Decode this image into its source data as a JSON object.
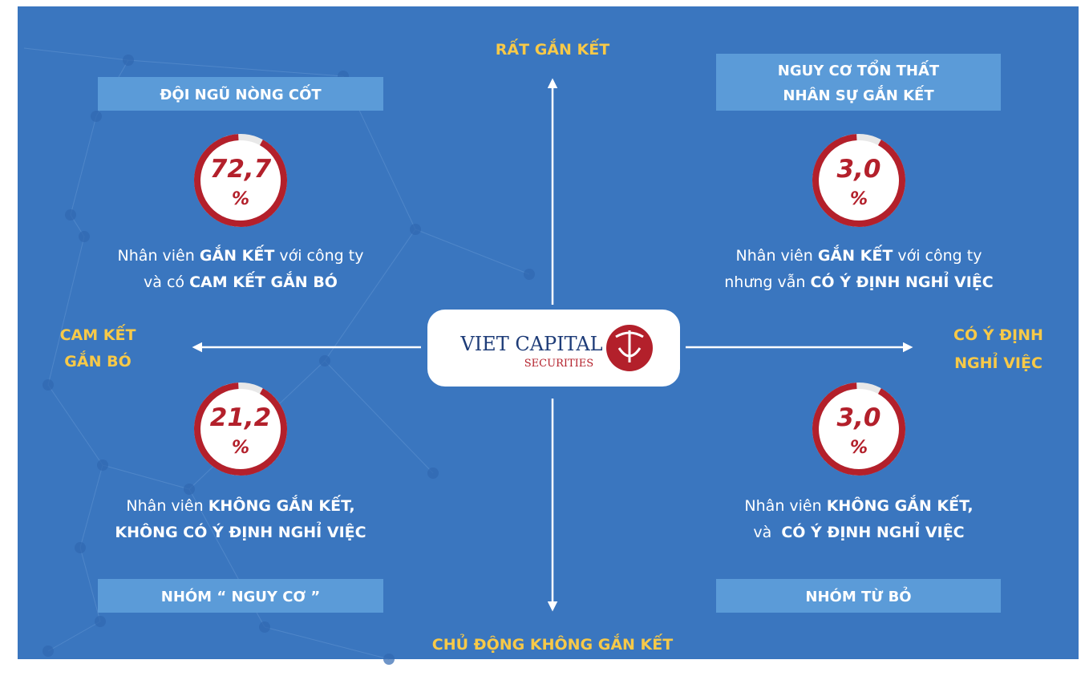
{
  "top_axis": "RẤT GẮN KẾT",
  "bottom_axis": "CHỦ ĐỘNG KHÔNG GẮN KẾT",
  "left_axis": [
    "CAM KẾT",
    "GẮN BÓ"
  ],
  "right_axis": [
    "CÓ Ý ĐỊNH",
    "NGHỈ VIỆC"
  ],
  "logo": {
    "name": "VIET CAPITAL",
    "sub": "SECURITIES"
  },
  "quadrants": [
    {
      "title": [
        "ĐỘI NGŨ NÒNG CỐT"
      ],
      "value": "72,7",
      "unit": "%",
      "description": [
        [
          {
            "text": "Nhân viên "
          },
          {
            "text": "GẮN KẾT",
            "bold": true
          },
          {
            "text": " với công ty"
          }
        ],
        [
          {
            "text": "và có "
          },
          {
            "text": "CAM KẾT GẮN BÓ",
            "bold": true
          }
        ]
      ]
    },
    {
      "title": [
        "NGUY CƠ TỔN THẤT",
        "NHÂN SỰ GẮN KẾT"
      ],
      "value": "3,0",
      "unit": "%",
      "description": [
        [
          {
            "text": "Nhân viên "
          },
          {
            "text": "GẮN KẾT",
            "bold": true
          },
          {
            "text": " với công ty"
          }
        ],
        [
          {
            "text": "nhưng vẫn "
          },
          {
            "text": "CÓ Ý ĐỊNH NGHỈ VIỆC",
            "bold": true
          }
        ]
      ]
    },
    {
      "title": [
        "NHÓM “ NGUY CƠ ”"
      ],
      "value": "21,2",
      "unit": "%",
      "description": [
        [
          {
            "text": "Nhân viên "
          },
          {
            "text": "KHÔNG GẮN KẾT,",
            "bold": true
          }
        ],
        [
          {
            "text": "KHÔNG CÓ Ý ĐỊNH NGHỈ VIỆC",
            "bold": true
          }
        ]
      ]
    },
    {
      "title": [
        "NHÓM TỪ BỎ"
      ],
      "value": "3,0",
      "unit": "%",
      "description": [
        [
          {
            "text": "Nhân viên "
          },
          {
            "text": "KHÔNG GẮN KẾT,",
            "bold": true
          }
        ],
        [
          {
            "text": "và  "
          },
          {
            "text": "CÓ Ý ĐỊNH NGHỈ VIỆC",
            "bold": true
          }
        ]
      ]
    }
  ]
}
